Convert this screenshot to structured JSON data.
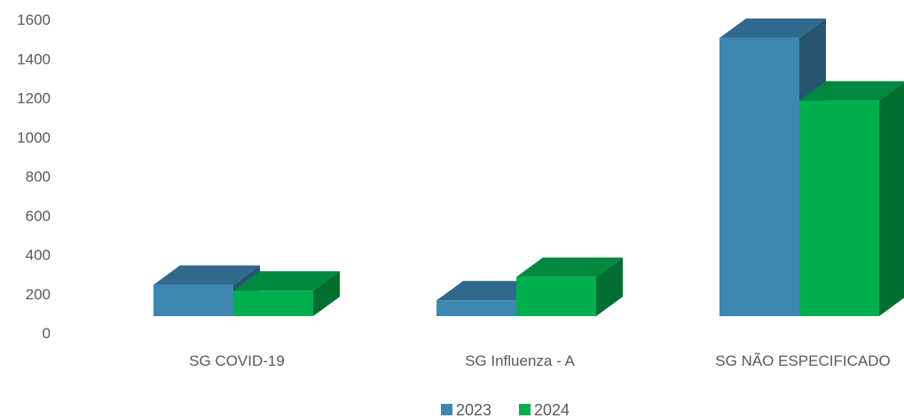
{
  "chart_data": {
    "type": "bar",
    "style": "3d-clustered-column",
    "categories": [
      "SG COVID-19",
      "SG Influenza - A",
      "SG NÃO ESPECIFICADO"
    ],
    "series": [
      {
        "name": "2023",
        "values": [
          160,
          80,
          1420
        ],
        "color": "#3f87b3"
      },
      {
        "name": "2024",
        "values": [
          130,
          200,
          1100
        ],
        "color": "#00b04f"
      }
    ],
    "yticks": [
      "0",
      "200",
      "400",
      "600",
      "800",
      "1000",
      "1200",
      "1400",
      "1600"
    ],
    "ylim": [
      0,
      1600
    ],
    "grid": false,
    "legend_position": "bottom"
  }
}
